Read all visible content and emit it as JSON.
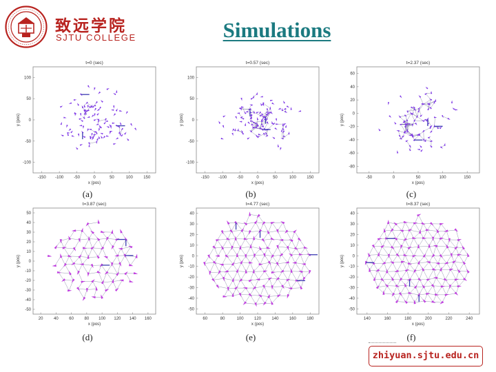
{
  "header": {
    "logo_cn": "致远学院",
    "logo_en": "SJTU COLLEGE",
    "title": "Simulations"
  },
  "footer": {
    "url": "zhiyuan.sjtu.edu.cn"
  },
  "colors": {
    "brand": "#b8231f",
    "title": "#1b7a80",
    "agents": "#7d35e6",
    "agents_late": "#c03ee0",
    "edges": "#333366"
  },
  "chart_data": [
    {
      "type": "scatter",
      "title": "t=0 (sec)",
      "xlabel": "x (pos)",
      "ylabel": "y (pos)",
      "xlim": [
        -170,
        160
      ],
      "ylim": [
        -130,
        130
      ],
      "xticks": [
        "-150",
        "-100",
        "-50",
        "0",
        "50",
        "100",
        "150"
      ],
      "yticks": [
        "100",
        "50",
        "0",
        "-50",
        "-100"
      ],
      "caption": "(a)",
      "seed": 11,
      "n": 110,
      "spread": 0.55,
      "dens": 0.05
    },
    {
      "type": "scatter",
      "title": "t=0.57 (sec)",
      "xlabel": "x (pos)",
      "ylabel": "y (pos)",
      "xlim": [
        -170,
        160
      ],
      "ylim": [
        -130,
        130
      ],
      "xticks": [
        "-150",
        "-100",
        "-50",
        "0",
        "50",
        "100",
        "150"
      ],
      "yticks": [
        "100",
        "50",
        "0",
        "-50",
        "-100"
      ],
      "caption": "(b)",
      "seed": 23,
      "n": 110,
      "spread": 0.55,
      "dens": 0.12
    },
    {
      "type": "scatter",
      "title": "t=2.37 (sec)",
      "xlabel": "x (pos)",
      "ylabel": "y (pos)",
      "xlim": [
        -55,
        155
      ],
      "ylim": [
        -90,
        70
      ],
      "xticks": [
        "-50",
        "0",
        "50",
        "100",
        "150"
      ],
      "yticks": [
        "60",
        "40",
        "20",
        "0",
        "-20",
        "-40",
        "-60",
        "-80"
      ],
      "caption": "(c)",
      "seed": 37,
      "n": 90,
      "spread": 0.58,
      "dens": 0.3
    },
    {
      "type": "scatter",
      "title": "t=3.87 (sec)",
      "xlabel": "x (pos)",
      "ylabel": "y (pos)",
      "xlim": [
        18,
        162
      ],
      "ylim": [
        -58,
        58
      ],
      "xticks": [
        "20",
        "40",
        "60",
        "80",
        "100",
        "120",
        "140",
        "160"
      ],
      "yticks": [
        "50",
        "40",
        "30",
        "20",
        "10",
        "0",
        "-10",
        "-20",
        "-30",
        "-40",
        "-50"
      ],
      "caption": "(d)",
      "seed": 41,
      "n": 95,
      "spread": 0.72,
      "dens": 0.62
    },
    {
      "type": "scatter",
      "title": "t=4.77 (sec)",
      "xlabel": "x (pos)",
      "ylabel": "y (pos)",
      "xlim": [
        48,
        192
      ],
      "ylim": [
        -52,
        46
      ],
      "xticks": [
        "60",
        "80",
        "100",
        "120",
        "140",
        "160",
        "180"
      ],
      "yticks": [
        "40",
        "30",
        "20",
        "10",
        "0",
        "-10",
        "-20",
        "-30",
        "-40",
        "-50"
      ],
      "caption": "(e)",
      "seed": 53,
      "n": 110,
      "spread": 0.86,
      "dens": 0.9
    },
    {
      "type": "scatter",
      "title": "t=8.37 (sec)",
      "xlabel": "x (pos)",
      "ylabel": "y (pos)",
      "xlim": [
        128,
        242
      ],
      "ylim": [
        -52,
        46
      ],
      "xticks": [
        "140",
        "160",
        "180",
        "200",
        "220",
        "240"
      ],
      "yticks": [
        "40",
        "30",
        "20",
        "10",
        "0",
        "-10",
        "-20",
        "-30",
        "-40",
        "-50"
      ],
      "caption": "(f)",
      "seed": 67,
      "n": 110,
      "spread": 0.86,
      "dens": 1.0
    }
  ]
}
